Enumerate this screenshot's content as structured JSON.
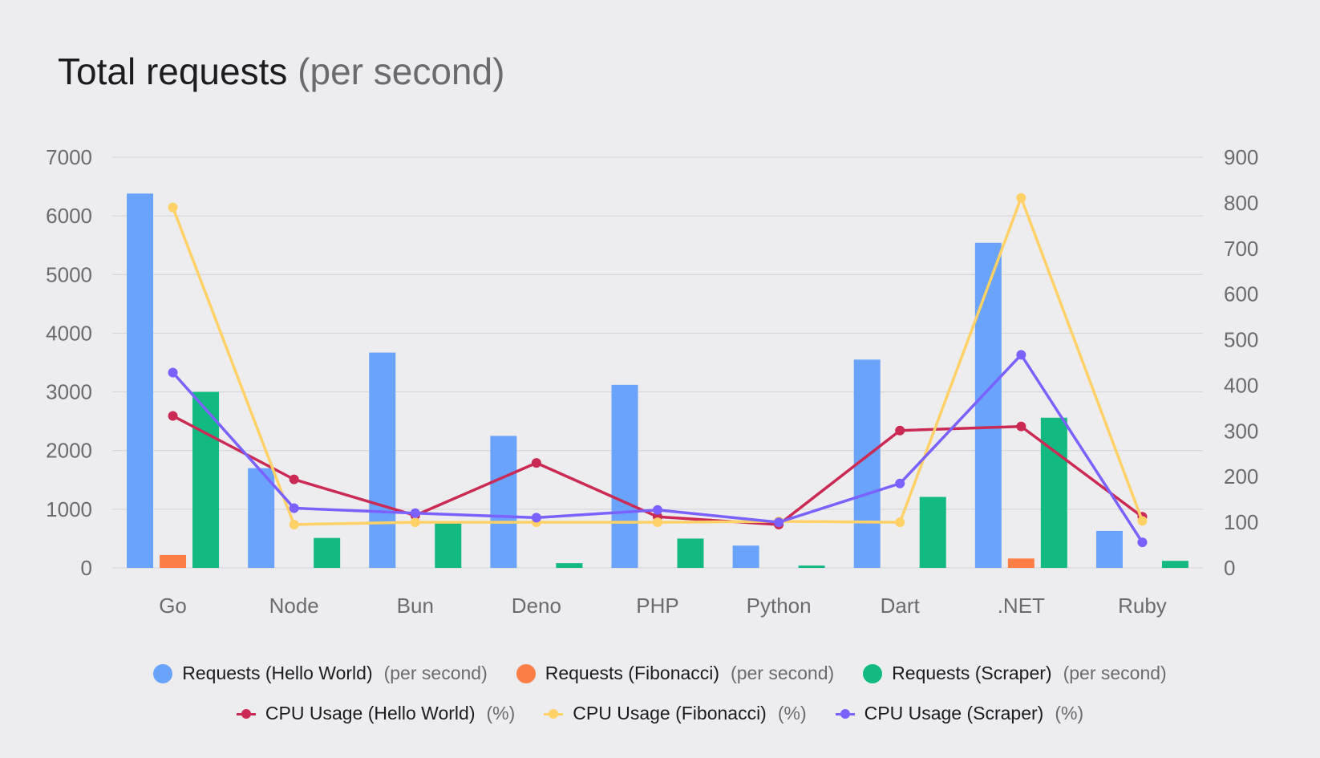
{
  "title": {
    "main": "Total requests",
    "unit": "(per second)"
  },
  "chart_data": {
    "type": "bar",
    "title": "Total requests (per second)",
    "categories": [
      "Go",
      "Node",
      "Bun",
      "Deno",
      "PHP",
      "Python",
      "Dart",
      ".NET",
      "Ruby"
    ],
    "y_left": {
      "ticks": [
        "0",
        "1000",
        "2000",
        "3000",
        "4000",
        "5000",
        "6000",
        "7000"
      ],
      "ylim": [
        0,
        7000
      ]
    },
    "y_right": {
      "ticks": [
        "0",
        "100",
        "200",
        "300",
        "400",
        "500",
        "600",
        "700",
        "800",
        "900"
      ],
      "ylim": [
        0,
        900
      ]
    },
    "grid": true,
    "legend_position": "bottom",
    "bar_series": [
      {
        "name": "Requests (Hello World)",
        "unit": "(per second)",
        "color": "#69a3fb",
        "values": [
          6380,
          1700,
          3670,
          2250,
          3120,
          380,
          3550,
          5540,
          630
        ]
      },
      {
        "name": "Requests (Fibonacci)",
        "unit": "(per second)",
        "color": "#fd7e44",
        "values": [
          220,
          0,
          0,
          0,
          0,
          0,
          0,
          160,
          0
        ]
      },
      {
        "name": "Requests (Scraper)",
        "unit": "(per second)",
        "color": "#12b981",
        "values": [
          3000,
          510,
          790,
          80,
          500,
          40,
          1210,
          2560,
          120
        ]
      }
    ],
    "line_series": [
      {
        "name": "CPU Usage (Hello World)",
        "unit": "(%)",
        "color": "#cb2a54",
        "values": [
          333,
          194,
          115,
          230,
          112,
          95,
          301,
          310,
          112
        ]
      },
      {
        "name": "CPU Usage (Fibonacci)",
        "unit": "(%)",
        "color": "#ffd166",
        "values": [
          790,
          95,
          100,
          100,
          100,
          102,
          100,
          811,
          103
        ]
      },
      {
        "name": "CPU Usage (Scraper)",
        "unit": "(%)",
        "color": "#7b61ff",
        "values": [
          428,
          131,
          120,
          110,
          127,
          100,
          185,
          467,
          56
        ]
      }
    ]
  }
}
